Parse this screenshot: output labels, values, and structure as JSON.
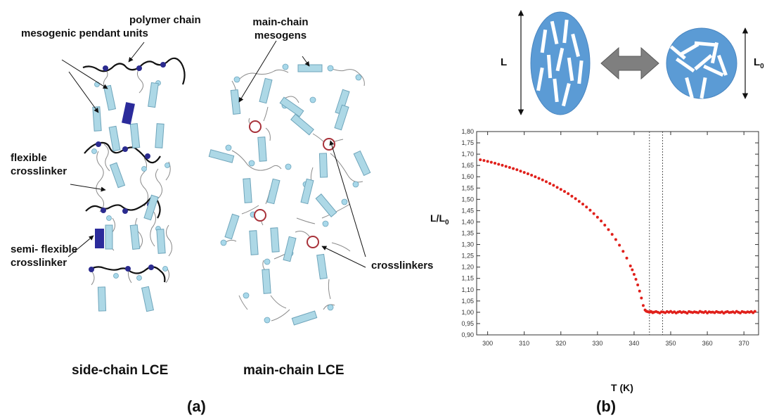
{
  "panel_a": {
    "side_chain": {
      "labels": {
        "mesogenic": "mesogenic pendant units",
        "polymer": "polymer chain",
        "flexible": "flexible crosslinker",
        "semi": "semi- flexible crosslinker"
      },
      "caption": "side-chain LCE"
    },
    "main_chain": {
      "labels": {
        "mesogens": "main-chain mesogens",
        "crosslinkers": "crosslinkers"
      },
      "caption": "main-chain LCE"
    },
    "panel_label": "(a)"
  },
  "panel_b": {
    "schematic": {
      "left_dimension": "L",
      "right_dimension": "L0",
      "shape_color": "#5b9bd5",
      "arrow_color": "#7f7f7f"
    },
    "panel_label": "(b)",
    "chart_data": {
      "type": "scatter",
      "xlabel": "T (K)",
      "ylabel": "L/L0",
      "xlim": [
        297,
        374
      ],
      "ylim": [
        0.9,
        1.8
      ],
      "x_ticks": [
        300,
        310,
        320,
        330,
        340,
        350,
        360,
        370
      ],
      "y_ticks": [
        "0,90",
        "0,95",
        "1,00",
        "1,05",
        "1,10",
        "1,15",
        "1,20",
        "1,25",
        "1,30",
        "1,35",
        "1,40",
        "1,45",
        "1,50",
        "1,55",
        "1,60",
        "1,65",
        "1,70",
        "1,75",
        "1,80"
      ],
      "vertical_dashed_lines_x": [
        344.2,
        347.8
      ],
      "marker_color": "#e0201b",
      "grid": false,
      "series": [
        {
          "x": [
            298.0,
            299.0,
            300.0,
            301.0,
            302.0,
            303.0,
            304.0,
            305.0,
            306.0,
            307.0,
            308.0,
            309.0,
            310.0,
            311.0,
            312.0,
            313.0,
            314.0,
            315.0,
            316.0,
            317.0,
            318.0,
            319.0,
            320.0,
            321.0,
            322.0,
            323.0,
            324.0,
            325.0,
            326.0,
            327.0,
            328.0,
            329.0,
            330.0,
            331.0,
            332.0,
            333.0,
            334.0,
            335.0,
            336.0,
            337.0,
            338.0,
            339.0,
            339.5,
            340.0,
            340.5,
            341.0,
            341.5,
            342.0,
            342.5,
            343.0,
            343.3,
            343.6,
            343.9,
            344.2,
            344.5,
            344.8,
            345.1,
            345.5,
            346.0,
            346.5,
            347.0,
            347.5,
            348.0,
            348.5,
            349.0,
            349.5,
            350.0,
            350.5,
            351.0,
            351.5,
            352.0,
            352.5,
            353.0,
            353.5,
            354.0,
            354.5,
            355.0,
            355.5,
            356.0,
            356.5,
            357.0,
            357.5,
            358.0,
            358.5,
            359.0,
            359.5,
            360.0,
            360.5,
            361.0,
            361.5,
            362.0,
            362.5,
            363.0,
            363.5,
            364.0,
            364.5,
            365.0,
            365.5,
            366.0,
            366.5,
            367.0,
            367.5,
            368.0,
            368.5,
            369.0,
            369.5,
            370.0,
            370.5,
            371.0,
            371.5,
            372.0,
            372.5,
            373.0
          ],
          "y": [
            1.675,
            1.672,
            1.668,
            1.664,
            1.66,
            1.655,
            1.651,
            1.646,
            1.641,
            1.636,
            1.631,
            1.625,
            1.619,
            1.613,
            1.607,
            1.6,
            1.593,
            1.586,
            1.578,
            1.57,
            1.562,
            1.553,
            1.544,
            1.535,
            1.525,
            1.514,
            1.503,
            1.491,
            1.479,
            1.466,
            1.452,
            1.437,
            1.421,
            1.404,
            1.386,
            1.366,
            1.345,
            1.322,
            1.297,
            1.27,
            1.24,
            1.205,
            1.188,
            1.168,
            1.146,
            1.121,
            1.094,
            1.063,
            1.03,
            1.01,
            1.005,
            1.003,
            1.002,
            1.0,
            1.004,
            1.002,
            0.998,
            1.001,
            1.003,
            1.0,
            0.997,
            1.002,
            1.001,
            0.998,
            1.003,
            1.0,
            1.004,
            0.999,
            1.002,
            0.997,
            1.001,
            1.003,
            0.999,
            1.002,
            1.0,
            0.996,
            1.003,
            1.001,
            0.999,
            1.002,
            1.0,
            0.998,
            1.004,
            1.001,
            0.999,
            1.003,
            0.997,
            1.002,
            1.0,
            1.001,
            0.998,
            1.003,
            1.0,
            0.999,
            1.002,
            0.996,
            1.001,
            1.003,
            0.999,
            1.0,
            1.002,
            0.998,
            1.004,
            1.0,
            0.997,
            1.003,
            1.001,
            0.999,
            1.002,
            1.0,
            1.003,
            0.998,
            1.004
          ]
        }
      ]
    }
  }
}
